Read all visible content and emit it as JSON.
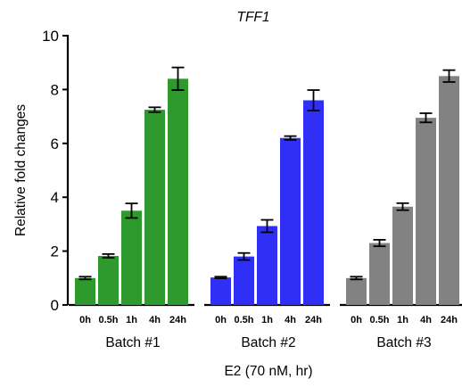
{
  "chart_data": {
    "type": "bar",
    "title": "TFF1",
    "ylabel": "Relative fold changes",
    "xlabel": "E2 (70 nM, hr)",
    "ylim": [
      0,
      10
    ],
    "yticks": [
      0,
      2,
      4,
      6,
      8,
      10
    ],
    "categories": [
      "0h",
      "0.5h",
      "1h",
      "4h",
      "24h"
    ],
    "groups": [
      {
        "name": "Batch #1",
        "color": "#2e9a2e",
        "values": [
          1.0,
          1.82,
          3.5,
          7.25,
          8.4
        ],
        "errors": [
          0.05,
          0.07,
          0.27,
          0.09,
          0.42
        ]
      },
      {
        "name": "Batch #2",
        "color": "#2f2ff5",
        "values": [
          1.02,
          1.8,
          2.93,
          6.2,
          7.6
        ],
        "errors": [
          0.03,
          0.13,
          0.23,
          0.07,
          0.38
        ]
      },
      {
        "name": "Batch #3",
        "color": "#828282",
        "values": [
          1.0,
          2.3,
          3.65,
          6.95,
          8.5
        ],
        "errors": [
          0.05,
          0.12,
          0.13,
          0.17,
          0.22
        ]
      }
    ],
    "grid": false,
    "legend": "none"
  }
}
